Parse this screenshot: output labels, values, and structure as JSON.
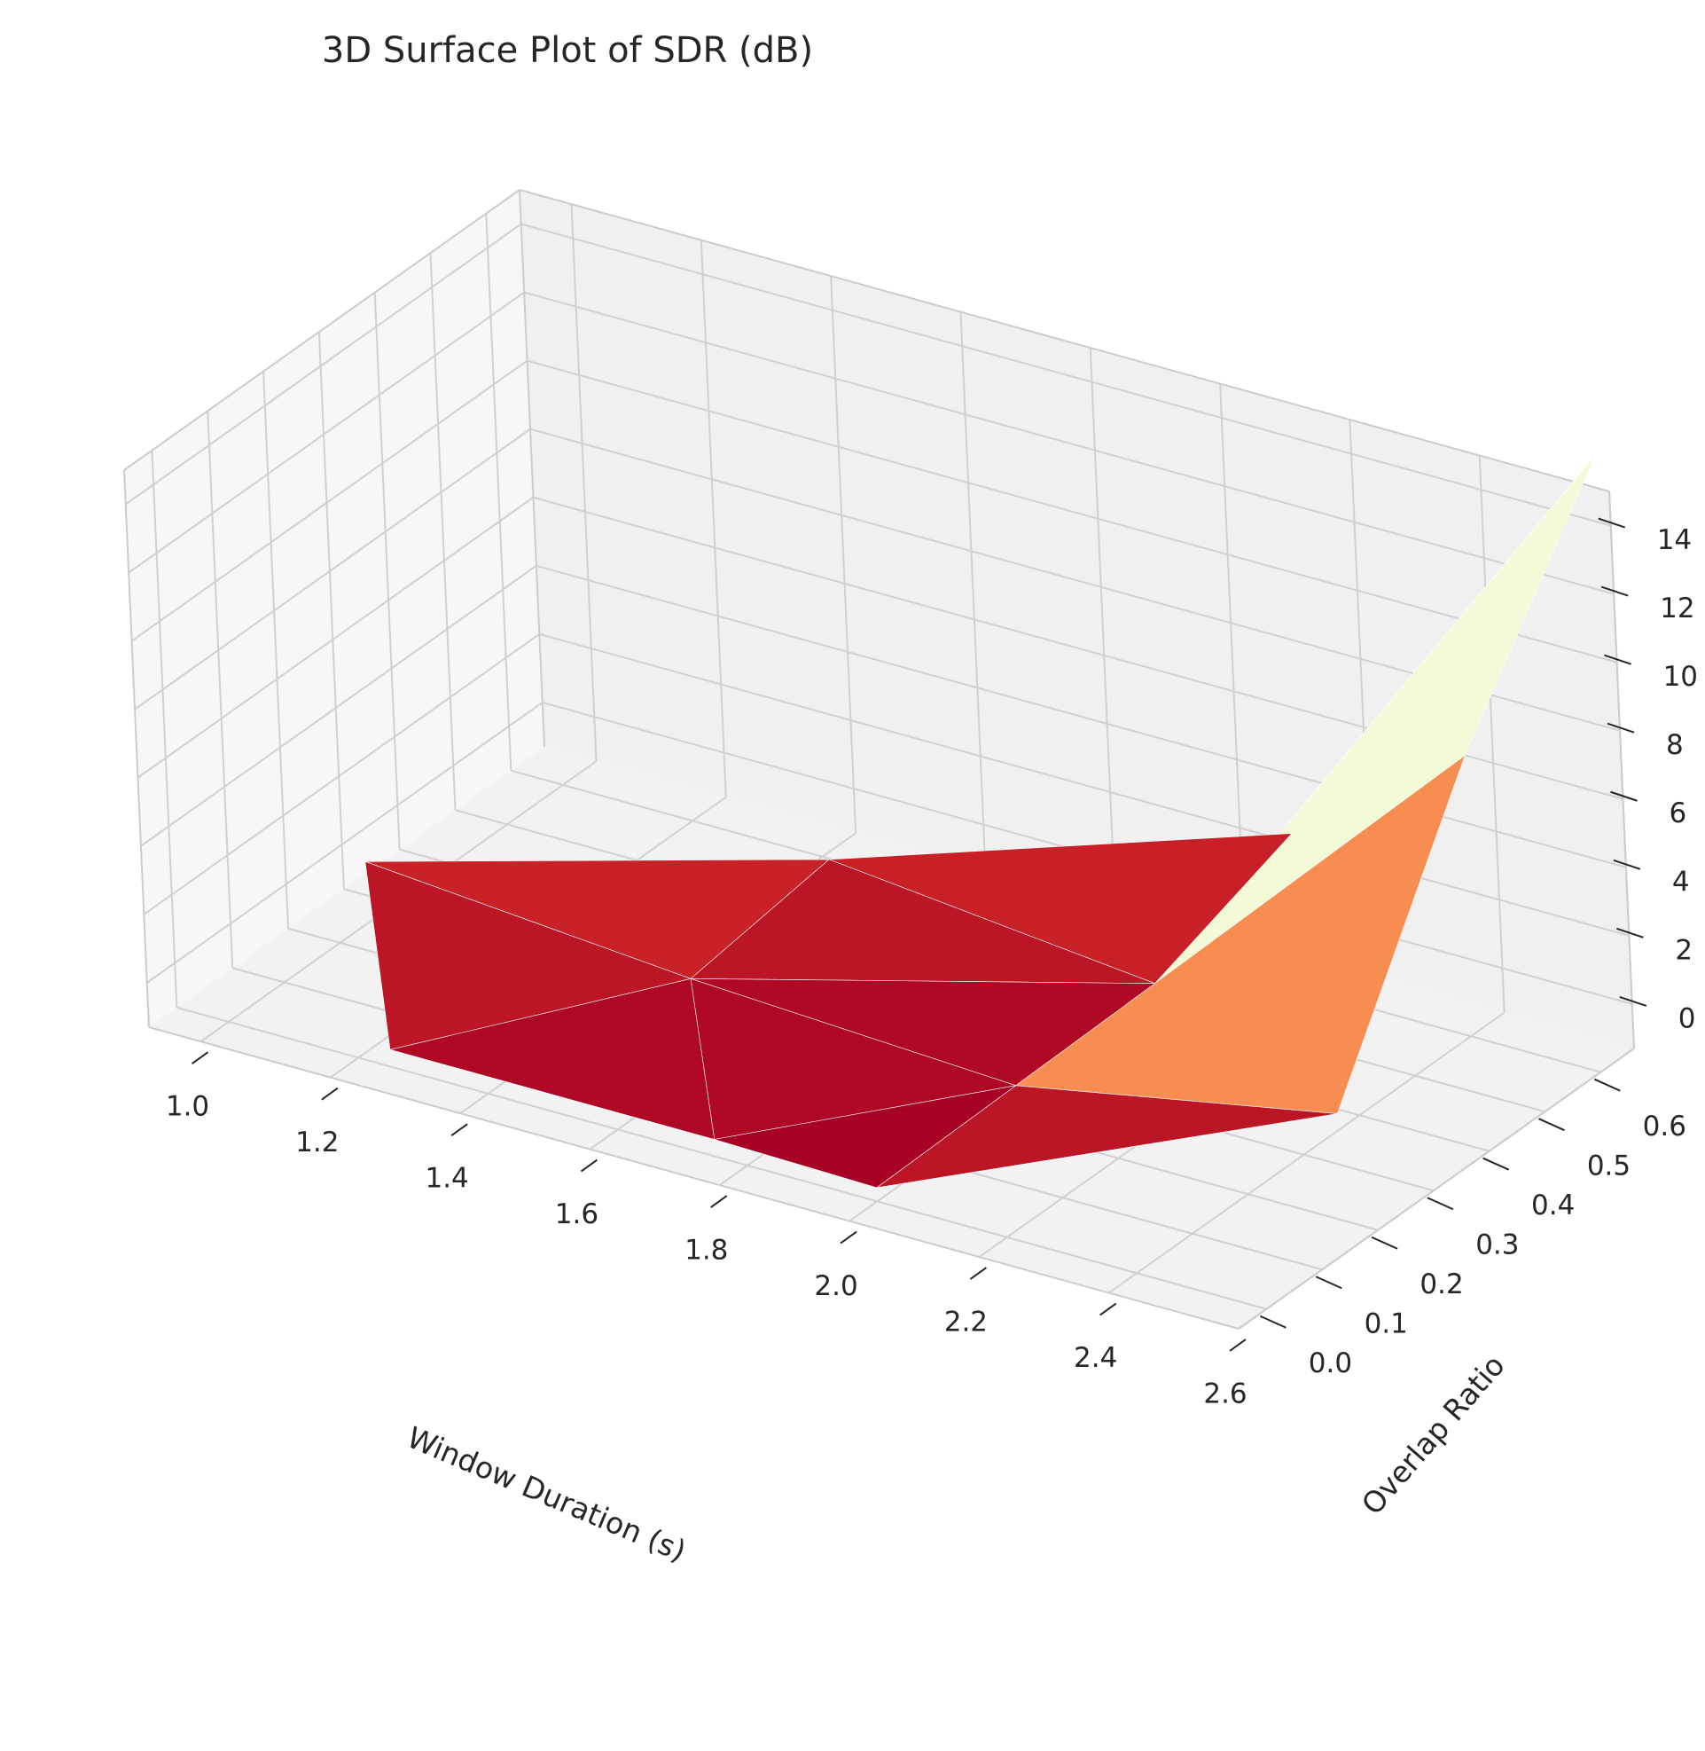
{
  "chart_data": {
    "type": "surface3d",
    "title": "3D Surface Plot of SDR (dB)",
    "xlabel": "Window Duration (s)",
    "ylabel": "Overlap Ratio",
    "zlabel": "",
    "x_ticks": [
      "1.0",
      "1.2",
      "1.4",
      "1.6",
      "1.8",
      "2.0",
      "2.2",
      "2.4",
      "2.6"
    ],
    "y_ticks": [
      "0.0",
      "0.1",
      "0.2",
      "0.3",
      "0.4",
      "0.5",
      "0.6"
    ],
    "z_ticks": [
      "0",
      "2",
      "4",
      "6",
      "8",
      "10",
      "12",
      "14"
    ],
    "xlim": [
      0.92,
      2.6
    ],
    "ylim": [
      -0.05,
      0.66
    ],
    "zlim": [
      -1.3,
      15.0
    ],
    "colormap": "RdYlBu",
    "grid": true,
    "points": [
      {
        "window_duration": 1.0,
        "overlap_ratio": 0.25,
        "sdr_db": 0.5
      },
      {
        "window_duration": 1.5,
        "overlap_ratio": 0.5,
        "sdr_db": 0.3
      },
      {
        "window_duration": 2.0,
        "overlap_ratio": 0.75,
        "sdr_db": 0.8
      },
      {
        "window_duration": 1.5,
        "overlap_ratio": 0.25,
        "sdr_db": -0.3
      },
      {
        "window_duration": 2.0,
        "overlap_ratio": 0.5,
        "sdr_db": -0.7
      },
      {
        "window_duration": 2.5,
        "overlap_ratio": 0.75,
        "sdr_db": 14.5
      },
      {
        "window_duration": 1.25,
        "overlap_ratio": 0.0,
        "sdr_db": -0.8
      },
      {
        "window_duration": 2.0,
        "overlap_ratio": 0.25,
        "sdr_db": -0.8
      },
      {
        "window_duration": 2.5,
        "overlap_ratio": 0.5,
        "sdr_db": 8.6
      },
      {
        "window_duration": 1.75,
        "overlap_ratio": 0.0,
        "sdr_db": -0.8
      },
      {
        "window_duration": 2.0,
        "overlap_ratio": 0.0,
        "sdr_db": -0.9
      },
      {
        "window_duration": 2.5,
        "overlap_ratio": 0.25,
        "sdr_db": 1.0
      }
    ],
    "triangles": [
      [
        0,
        1,
        3
      ],
      [
        1,
        2,
        4
      ],
      [
        1,
        3,
        4
      ],
      [
        2,
        4,
        5
      ],
      [
        4,
        5,
        8
      ],
      [
        3,
        4,
        7
      ],
      [
        4,
        7,
        8
      ],
      [
        7,
        8,
        11
      ],
      [
        0,
        3,
        6
      ],
      [
        3,
        6,
        9
      ],
      [
        3,
        7,
        9
      ],
      [
        7,
        9,
        10
      ],
      [
        7,
        10,
        11
      ]
    ]
  }
}
